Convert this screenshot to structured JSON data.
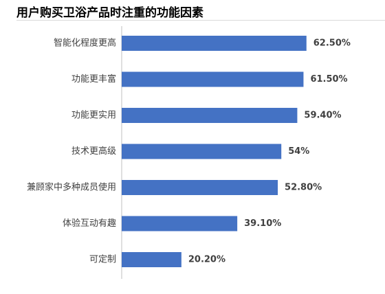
{
  "chart_data": {
    "type": "bar",
    "orientation": "horizontal",
    "title": "用户购买卫浴产品时注重的功能因素",
    "categories": [
      "智能化程度更高",
      "功能更丰富",
      "功能更实用",
      "技术更高级",
      "兼顾家中多种成员使用",
      "体验互动有趣",
      "可定制"
    ],
    "values": [
      62.5,
      61.5,
      59.4,
      54,
      52.8,
      39.1,
      20.2
    ],
    "value_labels": [
      "62.50%",
      "61.50%",
      "59.40%",
      "54%",
      "52.80%",
      "39.10%",
      "20.20%"
    ],
    "xlabel": "",
    "ylabel": "",
    "xlim": [
      0,
      100
    ],
    "grid": false,
    "legend": "none",
    "bar_color": "#4472c4"
  }
}
